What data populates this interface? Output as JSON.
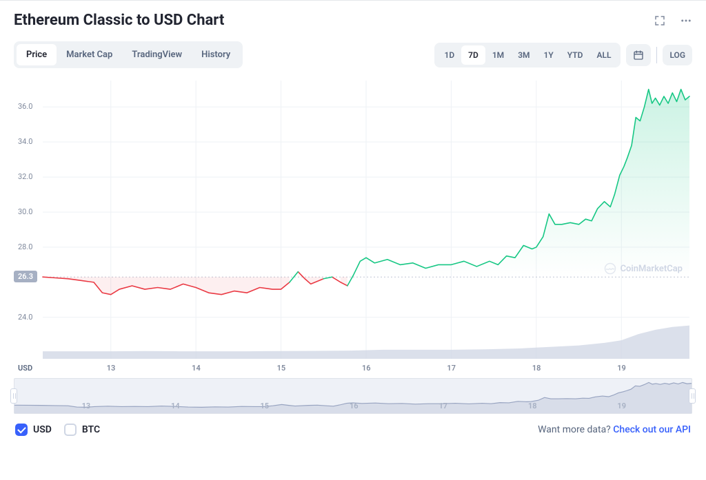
{
  "header": {
    "title": "Ethereum Classic to USD Chart"
  },
  "tabs": {
    "items": [
      "Price",
      "Market Cap",
      "TradingView",
      "History"
    ],
    "active_index": 0
  },
  "ranges": {
    "items": [
      "1D",
      "7D",
      "1M",
      "3M",
      "1Y",
      "YTD",
      "ALL"
    ],
    "active_index": 1,
    "log_label": "LOG"
  },
  "legend": {
    "usd": {
      "label": "USD",
      "checked": true
    },
    "btc": {
      "label": "BTC",
      "checked": false
    }
  },
  "footer": {
    "prompt": "Want more data? ",
    "link": "Check out our API"
  },
  "watermark": {
    "text": "CoinMarketCap"
  },
  "chart": {
    "type": "line-area",
    "y_unit": "USD",
    "start_value": 26.3,
    "start_badge_color": "#a6b0c3",
    "ylim": [
      22.5,
      37.5
    ],
    "yticks": [
      24.0,
      26.3,
      28.0,
      30.0,
      32.0,
      34.0,
      36.0
    ],
    "ytick_labels": [
      "24.0",
      "26.3",
      "28.0",
      "30.0",
      "32.0",
      "34.0",
      "36.0"
    ],
    "xlim": [
      12.2,
      19.8
    ],
    "xticks": [
      13,
      14,
      15,
      16,
      17,
      18,
      19
    ],
    "grid_color": "#eef1f5",
    "baseline_color": "#bfc6d4",
    "up_color": "#16c784",
    "down_color": "#ea3943",
    "area_up_top": "rgba(22,199,132,0.22)",
    "area_up_bottom": "rgba(22,199,132,0)",
    "area_down": "rgba(234,57,67,0.08)",
    "volume_color": "#cfd6e4",
    "line_width": 1.6,
    "series": [
      [
        12.2,
        26.3
      ],
      [
        12.35,
        26.25
      ],
      [
        12.5,
        26.2
      ],
      [
        12.65,
        26.1
      ],
      [
        12.8,
        26.0
      ],
      [
        12.9,
        25.4
      ],
      [
        13.0,
        25.3
      ],
      [
        13.1,
        25.6
      ],
      [
        13.25,
        25.8
      ],
      [
        13.4,
        25.6
      ],
      [
        13.55,
        25.7
      ],
      [
        13.7,
        25.6
      ],
      [
        13.85,
        25.9
      ],
      [
        14.0,
        25.7
      ],
      [
        14.15,
        25.4
      ],
      [
        14.3,
        25.3
      ],
      [
        14.45,
        25.5
      ],
      [
        14.6,
        25.4
      ],
      [
        14.75,
        25.7
      ],
      [
        14.9,
        25.6
      ],
      [
        15.0,
        25.6
      ],
      [
        15.1,
        26.0
      ],
      [
        15.2,
        26.6
      ],
      [
        15.28,
        26.2
      ],
      [
        15.35,
        25.9
      ],
      [
        15.5,
        26.2
      ],
      [
        15.6,
        26.3
      ],
      [
        15.7,
        26.0
      ],
      [
        15.78,
        25.8
      ],
      [
        15.85,
        26.4
      ],
      [
        15.93,
        27.2
      ],
      [
        16.0,
        27.4
      ],
      [
        16.1,
        27.1
      ],
      [
        16.25,
        27.3
      ],
      [
        16.4,
        27.0
      ],
      [
        16.55,
        27.1
      ],
      [
        16.7,
        26.8
      ],
      [
        16.85,
        27.0
      ],
      [
        17.0,
        27.0
      ],
      [
        17.15,
        27.2
      ],
      [
        17.3,
        26.9
      ],
      [
        17.45,
        27.2
      ],
      [
        17.55,
        27.0
      ],
      [
        17.65,
        27.5
      ],
      [
        17.75,
        27.4
      ],
      [
        17.85,
        28.1
      ],
      [
        17.95,
        27.9
      ],
      [
        18.0,
        28.0
      ],
      [
        18.08,
        28.6
      ],
      [
        18.15,
        29.9
      ],
      [
        18.22,
        29.3
      ],
      [
        18.3,
        29.3
      ],
      [
        18.4,
        29.4
      ],
      [
        18.5,
        29.3
      ],
      [
        18.58,
        29.6
      ],
      [
        18.65,
        29.5
      ],
      [
        18.72,
        30.2
      ],
      [
        18.8,
        30.6
      ],
      [
        18.87,
        30.3
      ],
      [
        18.92,
        31.0
      ],
      [
        18.98,
        32.1
      ],
      [
        19.03,
        32.6
      ],
      [
        19.07,
        33.1
      ],
      [
        19.12,
        33.8
      ],
      [
        19.17,
        35.4
      ],
      [
        19.22,
        35.2
      ],
      [
        19.27,
        36.0
      ],
      [
        19.32,
        37.0
      ],
      [
        19.36,
        36.2
      ],
      [
        19.4,
        36.5
      ],
      [
        19.45,
        36.1
      ],
      [
        19.5,
        36.6
      ],
      [
        19.55,
        36.2
      ],
      [
        19.6,
        36.8
      ],
      [
        19.65,
        36.3
      ],
      [
        19.7,
        37.0
      ],
      [
        19.75,
        36.4
      ],
      [
        19.8,
        36.6
      ]
    ],
    "volume": [
      [
        12.2,
        0.35
      ],
      [
        12.6,
        0.35
      ],
      [
        13.0,
        0.35
      ],
      [
        13.4,
        0.36
      ],
      [
        13.8,
        0.35
      ],
      [
        14.2,
        0.35
      ],
      [
        14.6,
        0.35
      ],
      [
        15.0,
        0.36
      ],
      [
        15.4,
        0.37
      ],
      [
        15.8,
        0.38
      ],
      [
        16.2,
        0.42
      ],
      [
        16.6,
        0.42
      ],
      [
        17.0,
        0.42
      ],
      [
        17.4,
        0.44
      ],
      [
        17.8,
        0.48
      ],
      [
        18.2,
        0.56
      ],
      [
        18.5,
        0.62
      ],
      [
        18.8,
        0.74
      ],
      [
        19.0,
        0.86
      ],
      [
        19.2,
        1.15
      ],
      [
        19.4,
        1.35
      ],
      [
        19.6,
        1.48
      ],
      [
        19.8,
        1.55
      ]
    ]
  },
  "mini": {
    "background": "#eef1f7",
    "line_color": "#97a3c0",
    "fill_color": "rgba(151,163,192,0.25)",
    "xticks": [
      13,
      14,
      15,
      16,
      17,
      18,
      19
    ]
  }
}
